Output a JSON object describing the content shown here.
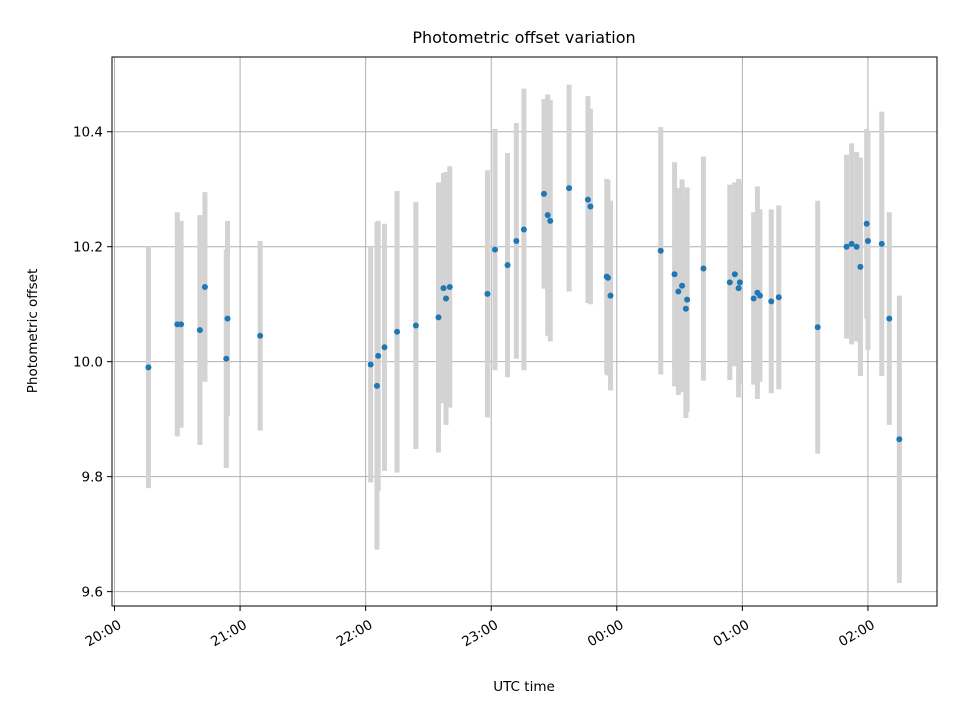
{
  "chart_data": {
    "type": "scatter",
    "title": "Photometric offset variation",
    "xlabel": "UTC time",
    "ylabel": "Photometric offset",
    "x_tick_labels": [
      "20:00",
      "21:00",
      "22:00",
      "23:00",
      "00:00",
      "01:00",
      "02:00"
    ],
    "x_ticks_hours_from_2000": [
      0,
      1,
      2,
      3,
      4,
      5,
      6
    ],
    "xlim_hours_from_2000": [
      -0.02,
      6.55
    ],
    "y_ticks": [
      9.6,
      9.8,
      10.0,
      10.2,
      10.4
    ],
    "ylim": [
      9.575,
      10.53
    ],
    "grid": true,
    "marker_color": "#1f77b4",
    "errorbar_color": "#d3d3d3",
    "series": [
      {
        "x_hours_from_2000": [
          0.27,
          0.5,
          0.53,
          0.68,
          0.72,
          0.89,
          0.9,
          1.16,
          2.04,
          2.09,
          2.1,
          2.15,
          2.25,
          2.4,
          2.58,
          2.62,
          2.64,
          2.67,
          2.97,
          3.03,
          3.13,
          3.2,
          3.26,
          3.42,
          3.45,
          3.47,
          3.62,
          3.77,
          3.79,
          3.92,
          3.93,
          3.95,
          4.35,
          4.46,
          4.49,
          4.52,
          4.55,
          4.56,
          4.69,
          4.9,
          4.94,
          4.97,
          4.98,
          5.09,
          5.12,
          5.14,
          5.23,
          5.29,
          5.6,
          5.83,
          5.87,
          5.91,
          5.94,
          5.99,
          6.0,
          6.11,
          6.17,
          6.25
        ],
        "y": [
          9.99,
          10.065,
          10.065,
          10.055,
          10.13,
          10.005,
          10.075,
          10.045,
          9.995,
          9.958,
          10.01,
          10.025,
          10.052,
          10.063,
          10.077,
          10.128,
          10.11,
          10.13,
          10.118,
          10.195,
          10.168,
          10.21,
          10.23,
          10.292,
          10.255,
          10.245,
          10.302,
          10.282,
          10.27,
          10.148,
          10.146,
          10.115,
          10.193,
          10.152,
          10.122,
          10.132,
          10.092,
          10.108,
          10.162,
          10.138,
          10.152,
          10.128,
          10.138,
          10.11,
          10.12,
          10.115,
          10.105,
          10.112,
          10.06,
          10.2,
          10.205,
          10.2,
          10.165,
          10.24,
          10.21,
          10.205,
          10.075,
          9.865
        ],
        "yerr": [
          0.21,
          0.195,
          0.18,
          0.2,
          0.165,
          0.19,
          0.17,
          0.165,
          0.205,
          0.285,
          0.235,
          0.215,
          0.245,
          0.215,
          0.235,
          0.2,
          0.22,
          0.21,
          0.215,
          0.21,
          0.195,
          0.205,
          0.245,
          0.165,
          0.21,
          0.21,
          0.18,
          0.18,
          0.17,
          0.17,
          0.17,
          0.165,
          0.215,
          0.195,
          0.18,
          0.185,
          0.19,
          0.195,
          0.195,
          0.17,
          0.16,
          0.19,
          0.175,
          0.15,
          0.185,
          0.15,
          0.16,
          0.16,
          0.22,
          0.16,
          0.175,
          0.165,
          0.19,
          0.165,
          0.19,
          0.23,
          0.185,
          0.25
        ]
      }
    ]
  }
}
